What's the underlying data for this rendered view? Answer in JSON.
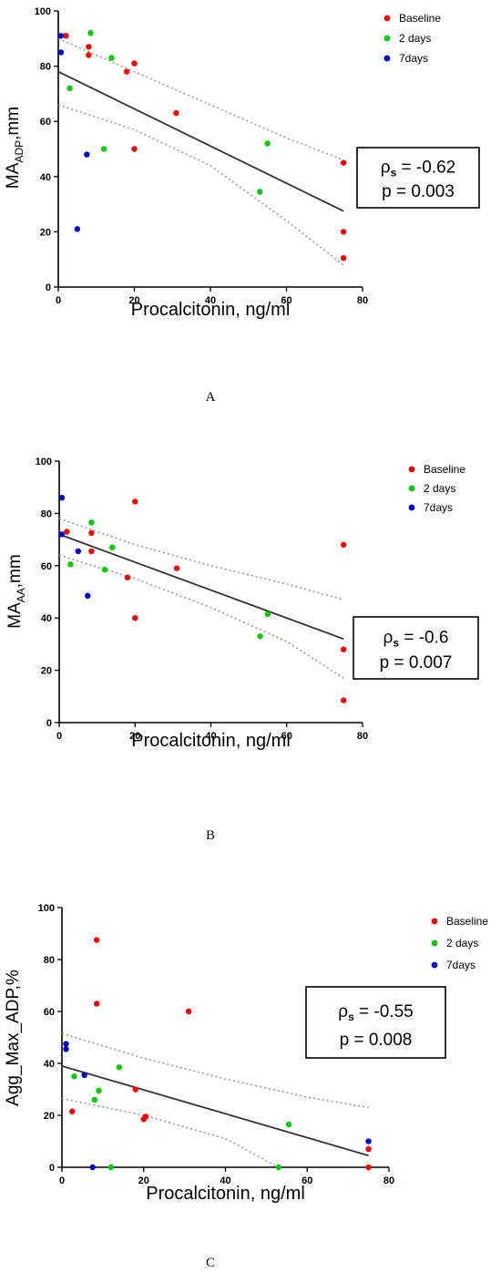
{
  "colors": {
    "baseline": "#ff0000",
    "two_days": "#00cc00",
    "seven_days": "#0000cc",
    "fit_line": "#333333",
    "ci_line": "#999999",
    "axis": "#000000"
  },
  "legend_labels": [
    "Baseline",
    "2 days",
    "7days"
  ],
  "chart_data": [
    {
      "type": "scatter",
      "panel_label": "A",
      "xlabel": "Procalcitonin, ng/ml",
      "ylabel_main": "MA",
      "ylabel_sub": "ADP",
      "ylabel_tail": ",mm",
      "xlim": [
        0,
        80
      ],
      "ylim": [
        0,
        100
      ],
      "xticks": [
        0,
        20,
        40,
        60,
        80
      ],
      "yticks": [
        0,
        20,
        40,
        60,
        80,
        100
      ],
      "stat_rho": "= -0.62",
      "stat_p": "p = 0.003",
      "series": [
        {
          "name": "Baseline",
          "color": "#ff0000",
          "points": [
            [
              2,
              91
            ],
            [
              8,
              87
            ],
            [
              8,
              84
            ],
            [
              18,
              78
            ],
            [
              20,
              81
            ],
            [
              20,
              50
            ],
            [
              31,
              63
            ],
            [
              75,
              45
            ],
            [
              75,
              20
            ],
            [
              75,
              10.5
            ]
          ]
        },
        {
          "name": "2 days",
          "color": "#00cc00",
          "points": [
            [
              3,
              72
            ],
            [
              8.5,
              92
            ],
            [
              12,
              50
            ],
            [
              14,
              83
            ],
            [
              53,
              34.5
            ],
            [
              55,
              52
            ]
          ]
        },
        {
          "name": "7days",
          "color": "#0000cc",
          "points": [
            [
              0.7,
              91
            ],
            [
              0.7,
              85
            ],
            [
              5,
              21
            ],
            [
              7.5,
              48
            ]
          ]
        }
      ],
      "fit": [
        [
          0,
          78
        ],
        [
          75,
          27.5
        ]
      ],
      "ci_upper": [
        [
          0,
          90
        ],
        [
          20,
          78
        ],
        [
          40,
          66
        ],
        [
          60,
          54
        ],
        [
          75,
          46
        ]
      ],
      "ci_lower": [
        [
          0,
          66
        ],
        [
          20,
          57
        ],
        [
          40,
          44
        ],
        [
          60,
          24
        ],
        [
          75,
          8
        ]
      ]
    },
    {
      "type": "scatter",
      "panel_label": "B",
      "xlabel": "Procalcitonin, ng/ml",
      "ylabel_main": "MA",
      "ylabel_sub": "AA",
      "ylabel_tail": ",mm",
      "xlim": [
        0,
        80
      ],
      "ylim": [
        0,
        100
      ],
      "xticks": [
        0,
        20,
        40,
        60,
        80
      ],
      "yticks": [
        0,
        20,
        40,
        60,
        80,
        100
      ],
      "stat_rho": "= -0.6",
      "stat_p": "p = 0.007",
      "series": [
        {
          "name": "Baseline",
          "color": "#ff0000",
          "points": [
            [
              2,
              73
            ],
            [
              8.5,
              72.5
            ],
            [
              8.5,
              65.5
            ],
            [
              18,
              55.5
            ],
            [
              20,
              84.5
            ],
            [
              20,
              40
            ],
            [
              31,
              59
            ],
            [
              75,
              68
            ],
            [
              75,
              28
            ],
            [
              75,
              8.5
            ]
          ]
        },
        {
          "name": "2 days",
          "color": "#00cc00",
          "points": [
            [
              3,
              60.5
            ],
            [
              8.5,
              76.5
            ],
            [
              12,
              58.5
            ],
            [
              14,
              67
            ],
            [
              53,
              33
            ],
            [
              55,
              41.5
            ]
          ]
        },
        {
          "name": "7days",
          "color": "#0000cc",
          "points": [
            [
              0.7,
              86
            ],
            [
              0.7,
              72
            ],
            [
              5,
              65.5
            ],
            [
              7.5,
              48.5
            ]
          ]
        }
      ],
      "fit": [
        [
          0,
          72
        ],
        [
          75,
          32
        ]
      ],
      "ci_upper": [
        [
          0,
          78
        ],
        [
          20,
          68
        ],
        [
          40,
          60
        ],
        [
          60,
          53
        ],
        [
          75,
          47
        ]
      ],
      "ci_lower": [
        [
          0,
          64
        ],
        [
          20,
          55
        ],
        [
          40,
          44
        ],
        [
          60,
          31
        ],
        [
          75,
          17
        ]
      ]
    },
    {
      "type": "scatter",
      "panel_label": "C",
      "xlabel": "Procalcitonin, ng/ml",
      "ylabel_main": "Agg_Max_ADP,%",
      "ylabel_sub": "",
      "ylabel_tail": "",
      "xlim": [
        0,
        80
      ],
      "ylim": [
        0,
        100
      ],
      "xticks": [
        0,
        20,
        40,
        60,
        80
      ],
      "yticks": [
        0,
        20,
        40,
        60,
        80,
        100
      ],
      "stat_rho": "= -0.55",
      "stat_p": "p = 0.008",
      "series": [
        {
          "name": "Baseline",
          "color": "#ff0000",
          "points": [
            [
              2.5,
              21.5
            ],
            [
              8.5,
              87.5
            ],
            [
              8.5,
              63
            ],
            [
              18,
              30
            ],
            [
              20,
              18.5
            ],
            [
              20.5,
              19.5
            ],
            [
              31,
              60
            ],
            [
              75,
              7
            ],
            [
              75,
              0
            ]
          ]
        },
        {
          "name": "2 days",
          "color": "#00cc00",
          "points": [
            [
              3,
              35
            ],
            [
              8,
              26
            ],
            [
              9,
              29.5
            ],
            [
              12,
              0
            ],
            [
              14,
              38.5
            ],
            [
              53,
              0
            ],
            [
              55.5,
              16.5
            ]
          ]
        },
        {
          "name": "7days",
          "color": "#0000cc",
          "points": [
            [
              1,
              47.5
            ],
            [
              1,
              45.5
            ],
            [
              5.5,
              35.5
            ],
            [
              7.5,
              0
            ],
            [
              75,
              10
            ]
          ]
        }
      ],
      "fit": [
        [
          0,
          39
        ],
        [
          75,
          4.5
        ]
      ],
      "ci_upper": [
        [
          0,
          51.5
        ],
        [
          20,
          42
        ],
        [
          40,
          34
        ],
        [
          60,
          27
        ],
        [
          75,
          23
        ]
      ],
      "ci_lower": [
        [
          0,
          26.5
        ],
        [
          20,
          20
        ],
        [
          40,
          11
        ],
        [
          53,
          0
        ]
      ]
    }
  ]
}
